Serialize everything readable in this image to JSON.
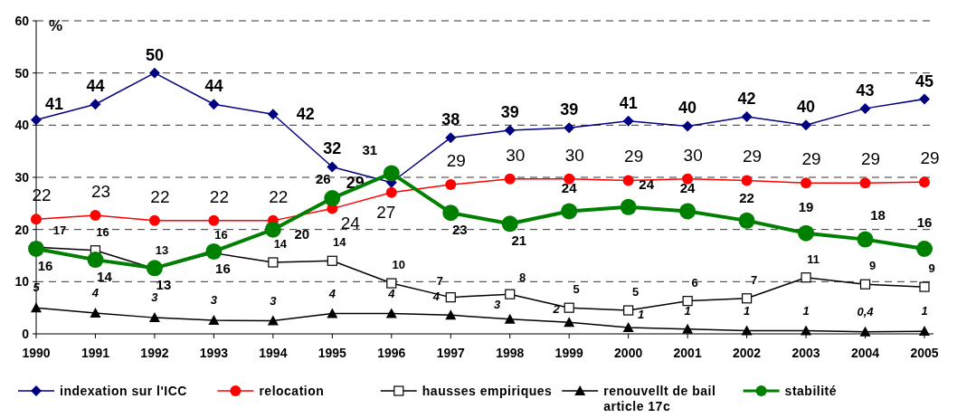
{
  "chart_data": {
    "type": "line",
    "ylabel": "%",
    "categories": [
      "1990",
      "1991",
      "1992",
      "1993",
      "1994",
      "1995",
      "1996",
      "1997",
      "1998",
      "1999",
      "2000",
      "2001",
      "2002",
      "2003",
      "2004",
      "2005"
    ],
    "ylim": [
      0,
      60
    ],
    "yticks": [
      0,
      10,
      20,
      30,
      40,
      50,
      60
    ],
    "grid": "y",
    "legend": "bottom",
    "series": [
      {
        "name": "indexation sur l'ICC",
        "color": "#000080",
        "marker": "diamond",
        "values": [
          41,
          44,
          50,
          44,
          42.1,
          32,
          29,
          37.6,
          39,
          39.5,
          40.8,
          39.8,
          41.6,
          40,
          43.2,
          45
        ],
        "value_labels": [
          "41",
          "44",
          "50",
          "44",
          "42",
          "32",
          "29",
          "38",
          "39",
          "39",
          "41",
          "40",
          "42",
          "40",
          "43",
          "45"
        ]
      },
      {
        "name": "relocation",
        "color": "#ff0000",
        "marker": "circle",
        "values": [
          22,
          22.7,
          21.7,
          21.7,
          21.7,
          24,
          27.1,
          28.6,
          29.7,
          29.7,
          29.4,
          29.7,
          29.4,
          28.9,
          28.9,
          29.1
        ],
        "value_labels": [
          "22",
          "23",
          "22",
          "22",
          "22",
          "24",
          "27",
          "29",
          "30",
          "30",
          "29",
          "30",
          "29",
          "29",
          "29",
          "29"
        ]
      },
      {
        "name": "hausses empiriques",
        "color": "#000000",
        "marker": "square",
        "values": [
          16.6,
          16,
          12.5,
          15.5,
          13.7,
          14,
          9.7,
          7,
          7.6,
          5,
          4.5,
          6.3,
          6.8,
          10.8,
          9.5,
          9
        ],
        "value_labels": [
          "17",
          "16",
          "13",
          "16",
          "14",
          "14",
          "10",
          "7",
          "8",
          "5",
          "5",
          "6",
          "7",
          "11",
          "9",
          "9"
        ]
      },
      {
        "name": "renouvellt de bail article 17c",
        "color": "#000000",
        "marker": "triangle",
        "values": [
          5,
          4,
          3.1,
          2.6,
          2.5,
          3.9,
          3.9,
          3.6,
          2.8,
          2.2,
          1.2,
          0.9,
          0.6,
          0.6,
          0.4,
          0.5
        ],
        "value_labels": [
          "5",
          "4",
          "3",
          "3",
          "3",
          "4",
          "4",
          "4",
          "3",
          "2",
          "1",
          "1",
          "1",
          "1",
          "0,4",
          "1"
        ]
      },
      {
        "name": "stabilité",
        "color": "#008000",
        "marker": "circle",
        "values": [
          16.3,
          14.2,
          12.6,
          15.8,
          20,
          26,
          30.8,
          23.2,
          21.1,
          23.5,
          24.3,
          23.5,
          21.7,
          19.3,
          18.1,
          16.3
        ],
        "value_labels": [
          "16",
          "14",
          "13",
          "16",
          "20",
          "26",
          "31",
          "23",
          "21",
          "24",
          "24",
          "24",
          "22",
          "19",
          "18",
          "16"
        ]
      }
    ]
  }
}
